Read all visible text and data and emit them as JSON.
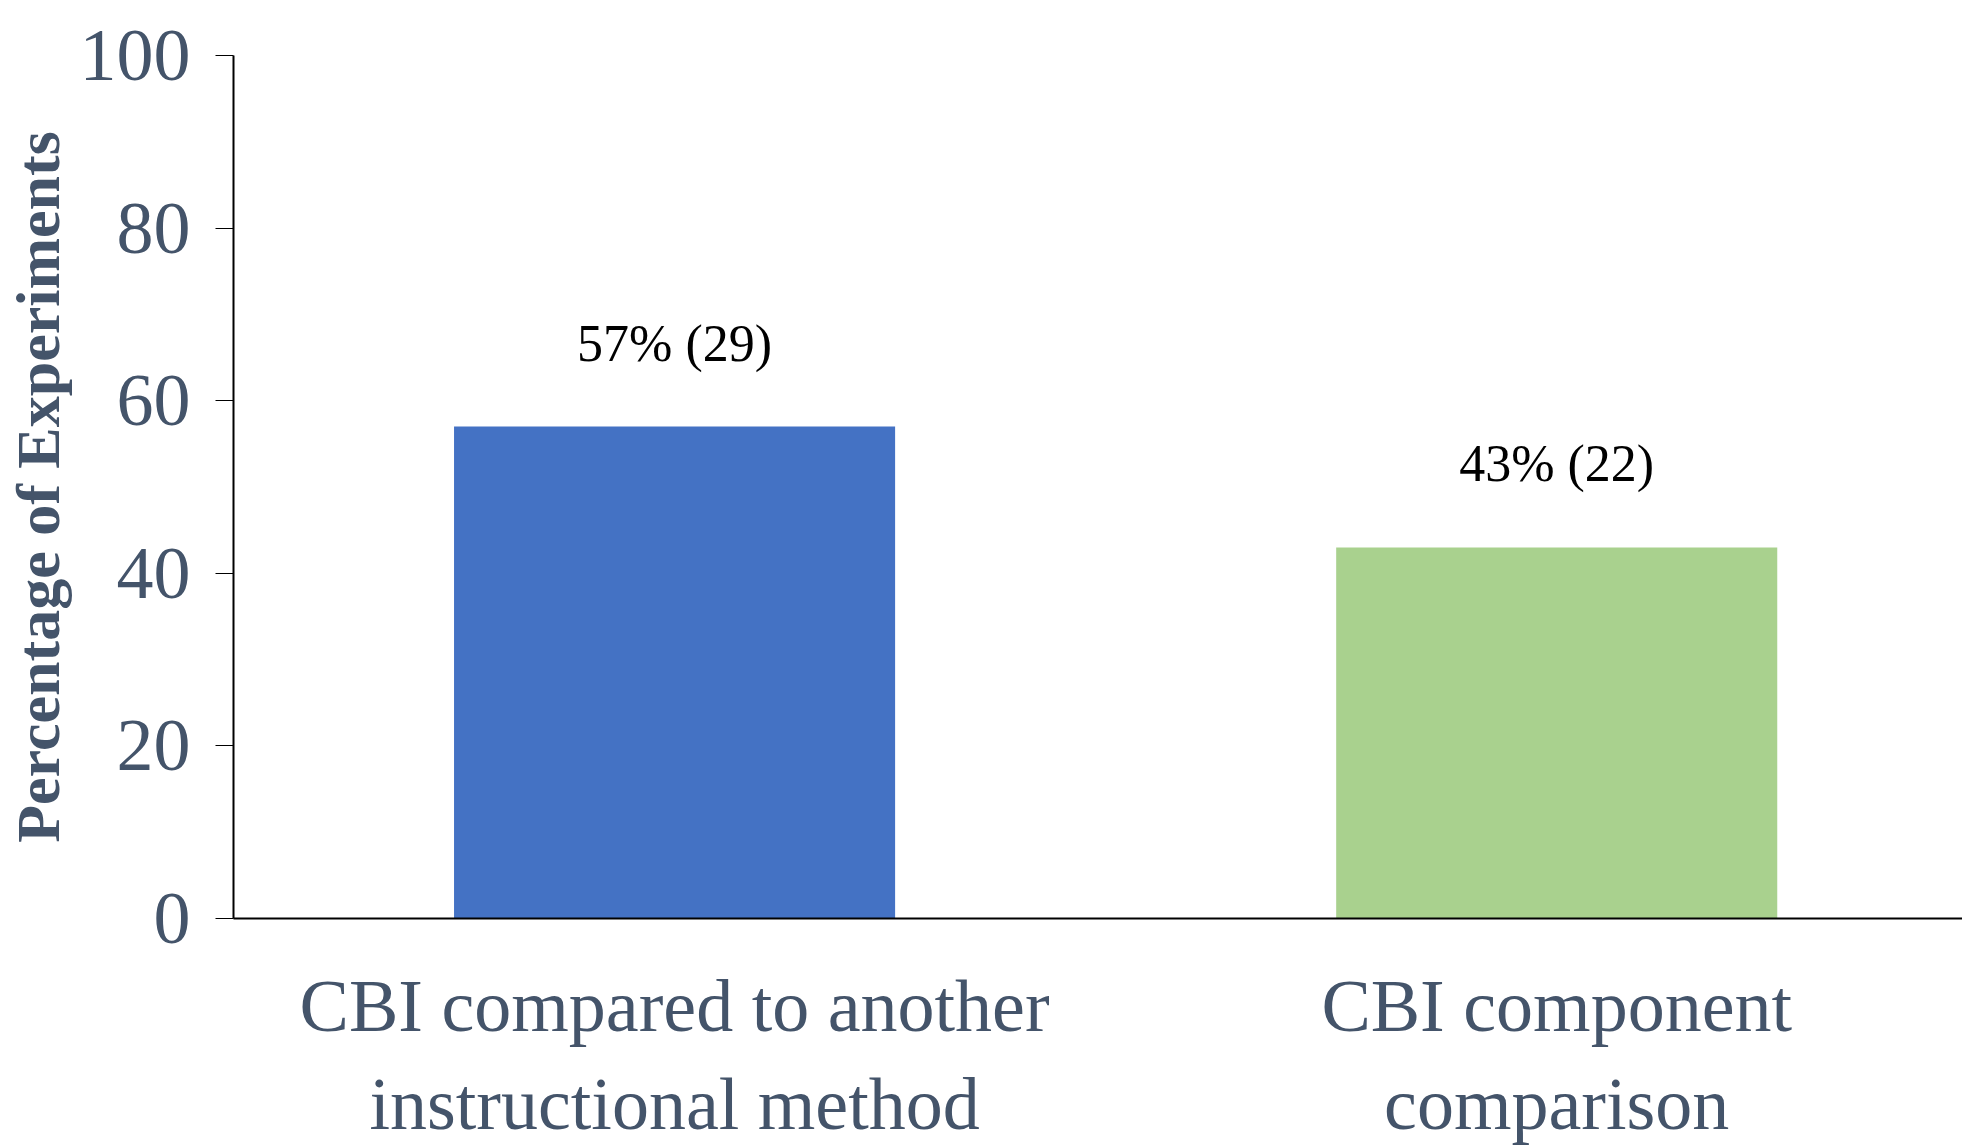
{
  "chart_data": {
    "type": "bar",
    "ylabel": "Percentage of Experiments",
    "categories": [
      "CBI compared to another instructional method",
      "CBI component comparison"
    ],
    "values": [
      57,
      43
    ],
    "colors": [
      "#4472c4",
      "#a9d18e"
    ],
    "value_labels": [
      "57% (29)",
      "43% (22)"
    ],
    "ylim": [
      0,
      100
    ],
    "yticks": [
      0,
      20,
      40,
      60,
      80,
      100
    ],
    "grid": false
  }
}
